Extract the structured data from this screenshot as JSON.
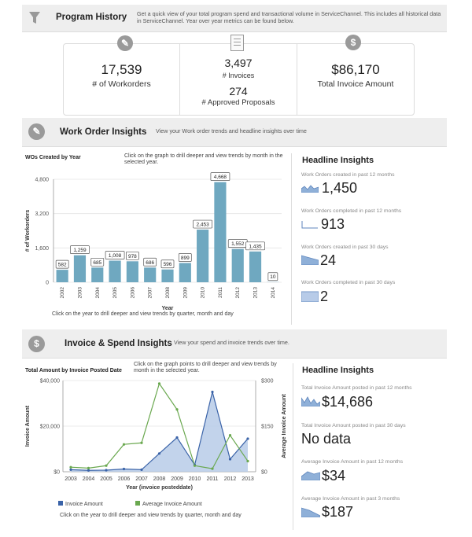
{
  "program_history": {
    "title": "Program History",
    "description": "Get a quick view of your total program spend and transactional volume in ServiceChannel. This includes all historical data in ServiceChannel. Year over year metrics can be found below.",
    "kpis": {
      "workorders_value": "17,539",
      "workorders_label": "# of Workorders",
      "invoices_value": "3,497",
      "invoices_label": "# Invoices",
      "proposals_value": "274",
      "proposals_label": "# Approved Proposals",
      "invoice_amount_value": "$86,170",
      "invoice_amount_label": "Total Invoice Amount"
    }
  },
  "wo_insights": {
    "title": "Work Order Insights",
    "description": "View your Work order trends and headline insights over time",
    "chart_hint": "Click on the graph to drill deeper and view trends by month in the selected year.",
    "footer_hint": "Click on the year to drill deeper and view trends by quarter, month and day",
    "headline": {
      "title": "Headline Insights",
      "items": [
        {
          "label": "Work Orders created in past 12 months",
          "value": "1,450"
        },
        {
          "label": "Work Orders completed in past 12 months",
          "value": "913"
        },
        {
          "label": "Work Orders created in past 30 days",
          "value": "24"
        },
        {
          "label": "Work Orders completed in past 30 days",
          "value": "2"
        }
      ]
    }
  },
  "invoice_insights": {
    "title": "Invoice & Spend Insights",
    "description": "View your spend and invoice trends over time.",
    "chart_hint": "Click on the graph points to drill deeper and view trends by month in the selected year.",
    "footer_hint": "Click on the year to drill deeper and view trends by quarter, month and day",
    "headline": {
      "title": "Headline Insights",
      "items": [
        {
          "label": "Total Invoice Amount posted in past 12 months",
          "value": "$14,686"
        },
        {
          "label": "Total Invoice Amount posted in past 30 days",
          "value": "No data"
        },
        {
          "label": "Average Invoice Amount in past 12 months",
          "value": "$34"
        },
        {
          "label": "Average Invoice Amount in past 3 months",
          "value": "$187"
        }
      ]
    }
  },
  "icons": {
    "program": "funnel-icon",
    "workorder": "wrench-icon",
    "invoices": "document-icon",
    "dollar": "dollar-icon"
  },
  "colors": {
    "bar": "#6fa8c0",
    "invoice_line": "#3a63a8",
    "invoice_area": "#b7cbe8",
    "avg_line": "#6aa84f",
    "spark": "#8fb0d8"
  },
  "chart_data": [
    {
      "type": "bar",
      "title": "WOs Created by Year",
      "xlabel": "Year",
      "ylabel": "# of Workorders",
      "categories": [
        "2002",
        "2003",
        "2004",
        "2005",
        "2006",
        "2007",
        "2008",
        "2009",
        "2010",
        "2011",
        "2012",
        "2013",
        "2014"
      ],
      "values": [
        582,
        1259,
        685,
        1008,
        978,
        686,
        596,
        899,
        2453,
        4668,
        1552,
        1435,
        10
      ],
      "data_labels": [
        "582",
        "1,259",
        "685",
        "1,008",
        "978",
        "686",
        "596",
        "899",
        "2,453",
        "4,668",
        "1,552",
        "1,435",
        "10"
      ],
      "yticks": [
        0,
        1600,
        3200,
        4800
      ],
      "ytick_labels": [
        "0",
        "1,600",
        "3,200",
        "4,800"
      ],
      "ylim": [
        0,
        4800
      ]
    },
    {
      "type": "line",
      "title": "Total Amount by Invoice Posted Date",
      "xlabel": "Year (invoice posteddate)",
      "ylabel": "Invoice Amount",
      "y2label": "Average Invoice Amount",
      "categories": [
        "2003",
        "2004",
        "2005",
        "2006",
        "2007",
        "2008",
        "2009",
        "2010",
        "2011",
        "2012",
        "2013"
      ],
      "series": [
        {
          "name": "Invoice Amount",
          "axis": "left",
          "values": [
            900,
            600,
            700,
            1200,
            900,
            8000,
            15000,
            3000,
            35000,
            5500,
            14500
          ]
        },
        {
          "name": "Average Invoice Amount",
          "axis": "right",
          "values": [
            15,
            12,
            20,
            90,
            95,
            290,
            205,
            20,
            10,
            120,
            35
          ]
        }
      ],
      "yticks": [
        0,
        20000,
        40000
      ],
      "ytick_labels": [
        "$0",
        "$20,000",
        "$40,000"
      ],
      "ylim": [
        0,
        40000
      ],
      "y2ticks": [
        0,
        150,
        300
      ],
      "y2tick_labels": [
        "$0",
        "$150",
        "$300"
      ],
      "y2lim": [
        0,
        300
      ],
      "legend": "bottom"
    }
  ]
}
